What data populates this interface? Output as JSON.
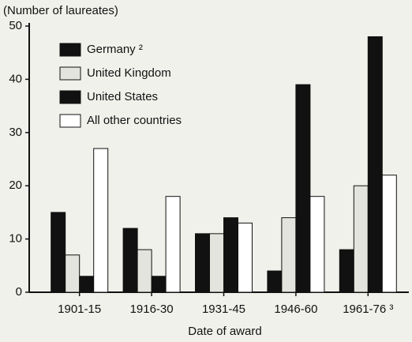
{
  "chart_data": {
    "type": "bar",
    "y_label": "(Number of laureates)",
    "x_label": "Date of award",
    "categories": [
      "1901-15",
      "1916-30",
      "1931-45",
      "1946-60",
      "1961-76 ³"
    ],
    "series": [
      {
        "name": "Germany ²",
        "color": "#111111",
        "values": [
          15,
          12,
          11,
          4,
          8
        ]
      },
      {
        "name": "United Kingdom",
        "color": "#e4e4de",
        "values": [
          7,
          8,
          11,
          14,
          20
        ]
      },
      {
        "name": "United States",
        "color": "#111111",
        "values": [
          3,
          3,
          14,
          39,
          48
        ]
      },
      {
        "name": "All other countries",
        "color": "#ffffff",
        "values": [
          27,
          18,
          13,
          18,
          22
        ]
      }
    ],
    "ylim": [
      0,
      50
    ],
    "yticks": [
      0,
      10,
      20,
      30,
      40,
      50
    ],
    "legend": "upper left"
  }
}
